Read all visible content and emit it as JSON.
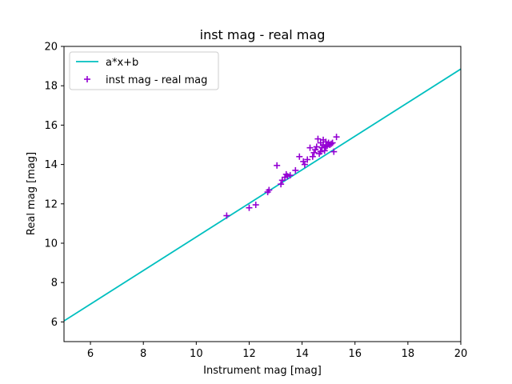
{
  "chart_data": {
    "type": "scatter",
    "title": "inst mag - real mag",
    "xlabel": "Instrument mag [mag]",
    "ylabel": "Real mag [mag]",
    "xlim": [
      5,
      20
    ],
    "ylim": [
      5,
      20
    ],
    "xticks": [
      6,
      8,
      10,
      12,
      14,
      16,
      18,
      20
    ],
    "yticks": [
      6,
      8,
      10,
      12,
      14,
      16,
      18,
      20
    ],
    "grid": false,
    "legend_position": "top-left",
    "series": [
      {
        "name": "a*x+b",
        "kind": "line",
        "color": "#00bfbf",
        "x": [
          5,
          20
        ],
        "y": [
          6.05,
          18.85
        ]
      },
      {
        "name": "inst mag - real mag",
        "kind": "scatter",
        "marker": "plus",
        "color": "#9400d3",
        "points": [
          [
            11.15,
            11.4
          ],
          [
            12.0,
            11.8
          ],
          [
            12.25,
            11.95
          ],
          [
            12.7,
            12.6
          ],
          [
            12.75,
            12.7
          ],
          [
            13.05,
            13.95
          ],
          [
            13.2,
            13.0
          ],
          [
            13.25,
            13.2
          ],
          [
            13.35,
            13.35
          ],
          [
            13.4,
            13.5
          ],
          [
            13.45,
            13.4
          ],
          [
            13.55,
            13.45
          ],
          [
            13.75,
            13.7
          ],
          [
            13.9,
            14.4
          ],
          [
            14.05,
            14.15
          ],
          [
            14.1,
            14.0
          ],
          [
            14.2,
            14.25
          ],
          [
            14.3,
            14.85
          ],
          [
            14.4,
            14.4
          ],
          [
            14.45,
            14.6
          ],
          [
            14.5,
            14.75
          ],
          [
            14.55,
            14.9
          ],
          [
            14.6,
            15.3
          ],
          [
            14.65,
            14.55
          ],
          [
            14.7,
            15.1
          ],
          [
            14.75,
            14.85
          ],
          [
            14.8,
            15.0
          ],
          [
            14.8,
            15.25
          ],
          [
            14.85,
            14.7
          ],
          [
            14.9,
            15.15
          ],
          [
            14.95,
            14.95
          ],
          [
            15.0,
            15.1
          ],
          [
            15.05,
            15.0
          ],
          [
            15.1,
            15.05
          ],
          [
            15.15,
            15.1
          ],
          [
            15.2,
            14.65
          ],
          [
            15.3,
            15.4
          ],
          [
            14.7,
            14.65
          ],
          [
            14.9,
            14.9
          ]
        ]
      }
    ]
  }
}
